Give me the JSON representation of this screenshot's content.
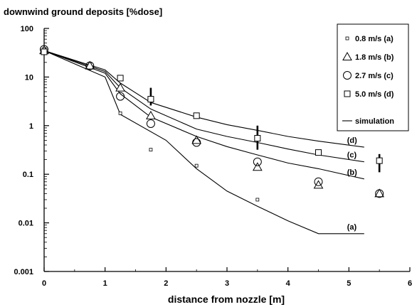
{
  "chart_data": {
    "type": "scatter",
    "title": "downwind ground deposits [%dose]",
    "xlabel": "distance from nozzle [m]",
    "ylabel": "",
    "yscale": "log",
    "xlim": [
      0,
      6
    ],
    "ylim": [
      0.001,
      100
    ],
    "xticks": [
      "0",
      "1",
      "2",
      "3",
      "4",
      "5",
      "6"
    ],
    "yticks": [
      "0.001",
      "0.01",
      "0.1",
      "1",
      "10",
      "100"
    ],
    "legend_position": "top-right",
    "series": [
      {
        "name": "0.8 m/s (a)",
        "marker": "small-square",
        "points": [
          [
            0,
            38
          ],
          [
            0.75,
            18
          ],
          [
            1.25,
            1.8
          ],
          [
            1.75,
            0.32
          ],
          [
            2.5,
            0.15
          ],
          [
            3.5,
            0.03
          ]
        ]
      },
      {
        "name": "1.8 m/s (b)",
        "marker": "triangle",
        "points": [
          [
            0,
            35
          ],
          [
            0.75,
            17
          ],
          [
            1.25,
            6
          ],
          [
            1.75,
            1.6
          ],
          [
            2.5,
            0.5
          ],
          [
            3.5,
            0.14
          ],
          [
            4.5,
            0.06
          ],
          [
            5.5,
            0.04
          ]
        ]
      },
      {
        "name": "2.7 m/s (c)",
        "marker": "circle",
        "points": [
          [
            0,
            37
          ],
          [
            0.75,
            17
          ],
          [
            1.25,
            4
          ],
          [
            1.75,
            1.1
          ],
          [
            2.5,
            0.45
          ],
          [
            3.5,
            0.18
          ],
          [
            4.5,
            0.07
          ],
          [
            5.5,
            0.04
          ]
        ]
      },
      {
        "name": "5.0 m/s (d)",
        "marker": "square",
        "points": [
          [
            0,
            33
          ],
          [
            1.25,
            9.5
          ],
          [
            1.75,
            3.5
          ],
          [
            2.5,
            1.6
          ],
          [
            3.5,
            0.55
          ],
          [
            4.5,
            0.28
          ],
          [
            5.5,
            0.19
          ]
        ]
      }
    ],
    "error_bars": [
      {
        "series": "5.0 m/s (d)",
        "x": 1.75,
        "low": 2.6,
        "high": 6.0
      },
      {
        "series": "5.0 m/s (d)",
        "x": 3.5,
        "low": 0.32,
        "high": 1.0
      },
      {
        "series": "5.0 m/s (d)",
        "x": 5.5,
        "low": 0.11,
        "high": 0.26
      }
    ],
    "simulation": {
      "name": "simulation",
      "curves": [
        {
          "label": "(a)",
          "points": [
            [
              0,
              35
            ],
            [
              1,
              10
            ],
            [
              1.25,
              1.7
            ],
            [
              2,
              0.5
            ],
            [
              2.5,
              0.13
            ],
            [
              3,
              0.045
            ],
            [
              3.5,
              0.022
            ],
            [
              4,
              0.011
            ],
            [
              4.5,
              0.006
            ],
            [
              5.25,
              0.006
            ]
          ]
        },
        {
          "label": "(b)",
          "points": [
            [
              0,
              35
            ],
            [
              1,
              12
            ],
            [
              1.25,
              4.5
            ],
            [
              1.75,
              1.5
            ],
            [
              2.5,
              0.6
            ],
            [
              3,
              0.37
            ],
            [
              3.5,
              0.25
            ],
            [
              4,
              0.17
            ],
            [
              4.5,
              0.13
            ],
            [
              5.25,
              0.08
            ]
          ]
        },
        {
          "label": "(c)",
          "points": [
            [
              0,
              35
            ],
            [
              1,
              13
            ],
            [
              1.25,
              6
            ],
            [
              1.75,
              2.2
            ],
            [
              2.5,
              0.85
            ],
            [
              3,
              0.6
            ],
            [
              3.5,
              0.45
            ],
            [
              4,
              0.33
            ],
            [
              4.5,
              0.25
            ],
            [
              5.25,
              0.18
            ]
          ]
        },
        {
          "label": "(d)",
          "points": [
            [
              0,
              35
            ],
            [
              1,
              14
            ],
            [
              1.25,
              7.5
            ],
            [
              1.75,
              3.0
            ],
            [
              2.5,
              1.5
            ],
            [
              3,
              1.05
            ],
            [
              3.5,
              0.8
            ],
            [
              4,
              0.6
            ],
            [
              4.5,
              0.48
            ],
            [
              5.25,
              0.36
            ]
          ]
        }
      ]
    }
  }
}
